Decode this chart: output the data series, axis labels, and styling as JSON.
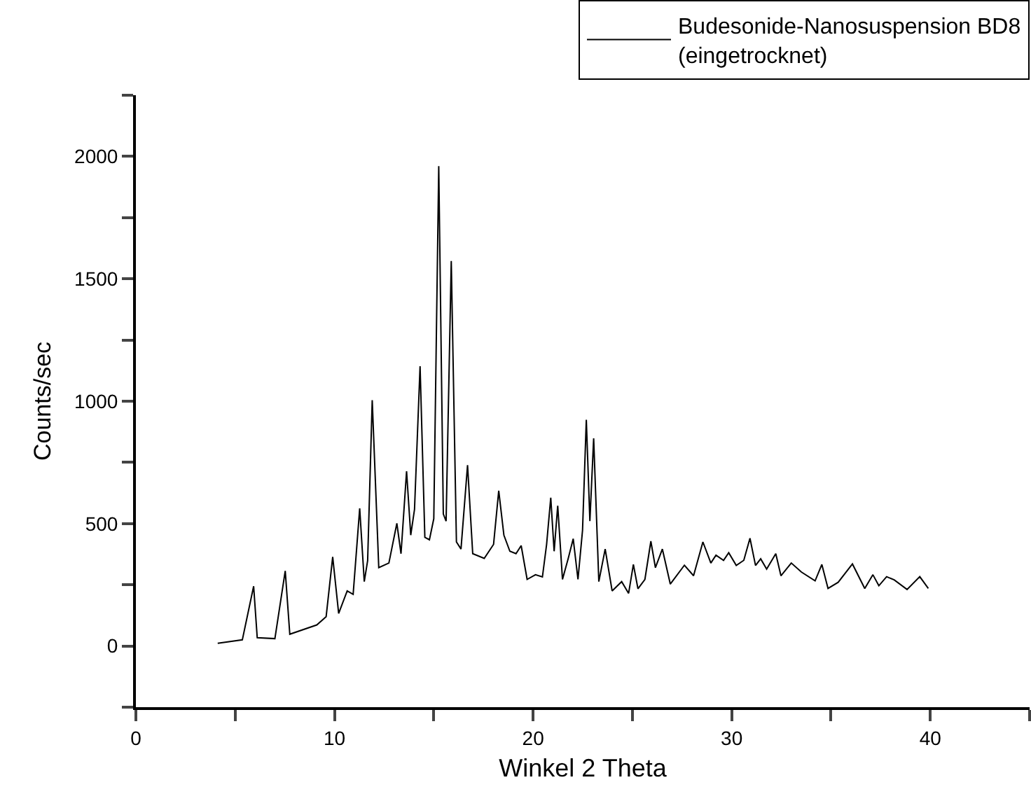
{
  "chart_data": {
    "type": "line",
    "xlabel": "Winkel 2 Theta",
    "ylabel": "Counts/sec",
    "xlim": [
      0,
      45
    ],
    "ylim": [
      -250,
      2250
    ],
    "xticks": [
      0,
      {
        "value": 5,
        "label": null
      },
      10,
      {
        "value": 15,
        "label": null
      },
      20,
      {
        "value": 25,
        "label": null
      },
      30,
      {
        "value": 35,
        "label": null
      },
      40,
      {
        "value": 45,
        "label": null
      }
    ],
    "yticks": [
      {
        "value": -250,
        "label": null
      },
      0,
      {
        "value": 250,
        "label": null
      },
      500,
      {
        "value": 750,
        "label": null
      },
      1000,
      {
        "value": 1250,
        "label": null
      },
      1500,
      {
        "value": 1750,
        "label": null
      },
      2000,
      {
        "value": 2250,
        "label": null
      }
    ],
    "legend": "top right",
    "marker": "none",
    "line_style": "solid",
    "series": [
      {
        "name": "Budesonide-Nanosuspension BD8\n(eingetrocknet)",
        "color": "#000000",
        "x": [
          4.12,
          5.36,
          5.93,
          6.11,
          7.0,
          7.52,
          7.75,
          9.11,
          9.58,
          9.91,
          10.21,
          10.64,
          10.94,
          11.27,
          11.5,
          11.67,
          11.9,
          12.23,
          12.74,
          13.14,
          13.35,
          13.63,
          13.84,
          14.03,
          14.31,
          14.55,
          14.78,
          15.0,
          15.25,
          15.48,
          15.62,
          15.88,
          16.14,
          16.37,
          16.7,
          16.96,
          17.54,
          18.01,
          18.27,
          18.53,
          18.83,
          19.14,
          19.4,
          19.7,
          20.12,
          20.47,
          20.68,
          20.89,
          21.06,
          21.24,
          21.48,
          21.77,
          22.02,
          22.26,
          22.49,
          22.68,
          22.86,
          23.05,
          23.31,
          23.63,
          23.98,
          24.46,
          24.81,
          25.05,
          25.28,
          25.63,
          25.93,
          26.16,
          26.51,
          26.91,
          27.62,
          28.08,
          28.55,
          28.95,
          29.21,
          29.59,
          29.85,
          30.23,
          30.61,
          30.92,
          31.2,
          31.46,
          31.76,
          32.22,
          32.48,
          33.0,
          33.51,
          34.2,
          34.54,
          34.85,
          35.36,
          36.08,
          36.7,
          37.11,
          37.41,
          37.8,
          38.18,
          38.83,
          39.47,
          39.9
        ],
        "values": [
          11,
          25,
          244,
          34,
          30,
          307,
          48,
          86,
          120,
          364,
          133,
          225,
          211,
          562,
          263,
          349,
          1004,
          320,
          339,
          501,
          377,
          714,
          453,
          558,
          1143,
          444,
          434,
          520,
          1960,
          539,
          510,
          1573,
          425,
          396,
          739,
          377,
          358,
          415,
          634,
          453,
          387,
          377,
          410,
          272,
          291,
          282,
          415,
          606,
          387,
          573,
          272,
          358,
          438,
          272,
          473,
          924,
          510,
          848,
          263,
          396,
          225,
          263,
          215,
          333,
          234,
          272,
          428,
          320,
          396,
          253,
          330,
          287,
          425,
          339,
          371,
          350,
          381,
          329,
          350,
          440,
          329,
          356,
          314,
          377,
          287,
          339,
          302,
          266,
          333,
          235,
          260,
          335,
          235,
          291,
          246,
          283,
          270,
          231,
          283,
          235
        ]
      }
    ]
  }
}
